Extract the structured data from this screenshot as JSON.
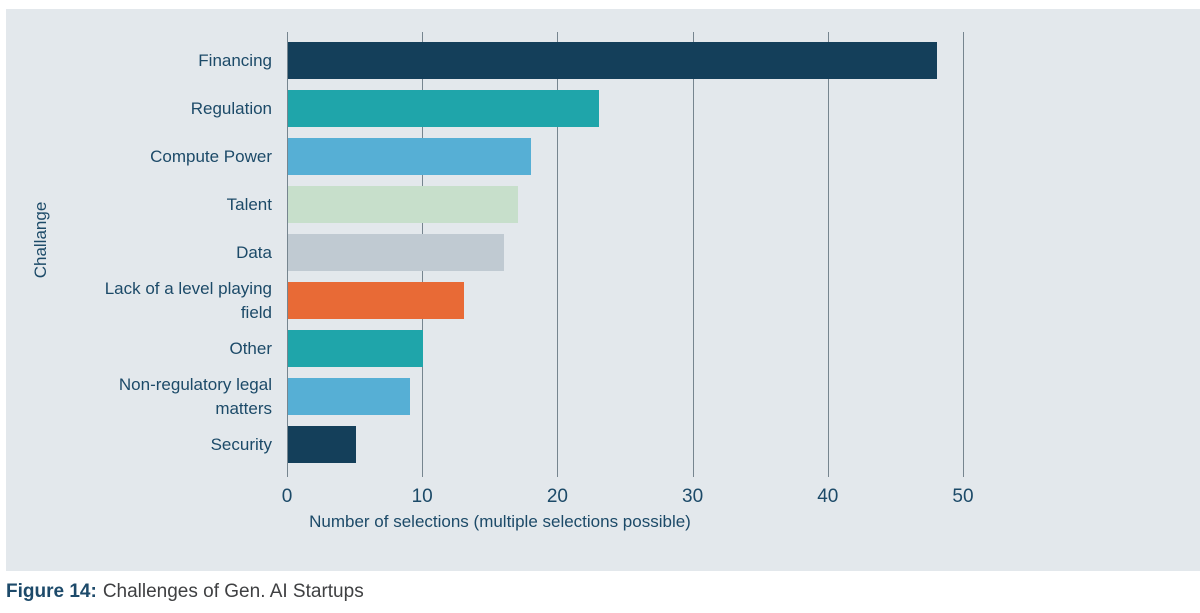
{
  "figure": {
    "caption_label": "Figure 14:",
    "caption_text": "Challenges of Gen. AI Startups"
  },
  "chart_data": {
    "type": "bar",
    "orientation": "horizontal",
    "categories": [
      "Financing",
      "Regulation",
      "Compute Power",
      "Talent",
      "Data",
      "Lack of a level playing field",
      "Other",
      "Non-regulatory legal matters",
      "Security"
    ],
    "values": [
      48,
      23,
      18,
      17,
      16,
      13,
      10,
      9,
      5
    ],
    "bar_colors": [
      "#143F5A",
      "#1FA5AA",
      "#56AFD5",
      "#C7DFCB",
      "#C0CAD2",
      "#E86A36",
      "#1FA5AA",
      "#56AFD5",
      "#143F5A"
    ],
    "xlabel": "Number of selections (multiple selections possible)",
    "ylabel": "Challange",
    "x_ticks": [
      0,
      10,
      20,
      30,
      40,
      50
    ],
    "xlim": [
      0,
      50
    ],
    "grid": true,
    "legend": false,
    "background": "#E3E8EC",
    "gridline_color": "#76858F",
    "text_color": "#1C4A68"
  }
}
